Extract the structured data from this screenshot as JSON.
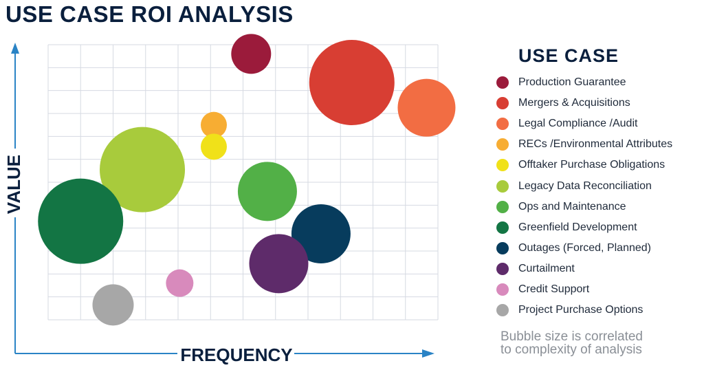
{
  "title": "USE CASE ROI ANALYSIS",
  "legend_title": "USE CASE",
  "note_line1": "Bubble size is correlated",
  "note_line2": "to complexity of analysis",
  "chart_data": {
    "type": "scatter",
    "variant": "bubble",
    "title": "USE CASE ROI ANALYSIS",
    "xlabel": "FREQUENCY",
    "ylabel": "VALUE",
    "xlim": [
      0,
      12
    ],
    "ylim": [
      0,
      12
    ],
    "grid": true,
    "legend": "right",
    "size_meaning": "complexity of analysis",
    "series": [
      {
        "name": "Production Guarantee",
        "color": "#9b1b3b",
        "x": 6.25,
        "y": 11.6,
        "size": 29
      },
      {
        "name": "Mergers & Acquisitions",
        "color": "#d83e33",
        "x": 9.35,
        "y": 10.35,
        "size": 62
      },
      {
        "name": "Legal Compliance /Audit",
        "color": "#f26d43",
        "x": 11.65,
        "y": 9.25,
        "size": 42
      },
      {
        "name": "RECs /Environmental Attributes",
        "color": "#f7ad33",
        "x": 5.1,
        "y": 8.5,
        "size": 19
      },
      {
        "name": "Offtaker Purchase Obligations",
        "color": "#f0e119",
        "x": 5.1,
        "y": 7.55,
        "size": 19
      },
      {
        "name": "Legacy Data Reconciliation",
        "color": "#a8cb3c",
        "x": 2.9,
        "y": 6.55,
        "size": 62
      },
      {
        "name": "Ops and Maintenance",
        "color": "#52b047",
        "x": 6.75,
        "y": 5.6,
        "size": 43
      },
      {
        "name": "Greenfield Development",
        "color": "#137544",
        "x": 1.0,
        "y": 4.3,
        "size": 62
      },
      {
        "name": "Outages (Forced, Planned)",
        "color": "#073c5d",
        "x": 8.4,
        "y": 3.75,
        "size": 43
      },
      {
        "name": "Curtailment",
        "color": "#5e2b6a",
        "x": 7.1,
        "y": 2.45,
        "size": 43
      },
      {
        "name": "Credit Support",
        "color": "#d88abc",
        "x": 4.05,
        "y": 1.6,
        "size": 20
      },
      {
        "name": "Project Purchase Options",
        "color": "#a7a7a7",
        "x": 2.0,
        "y": 0.65,
        "size": 30
      }
    ]
  }
}
